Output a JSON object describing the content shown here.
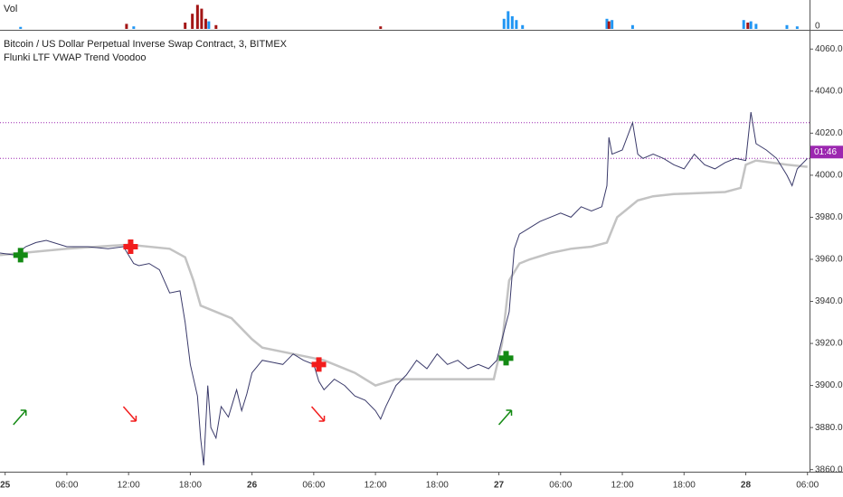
{
  "chart_data": {
    "type": "line",
    "title": "Bitcoin / US Dollar Perpetual Inverse Swap Contract, 3, BITMEX",
    "subtitle": "Flunki LTF VWAP Trend Voodoo",
    "countdown": "01:46",
    "xlim": [
      -0.5,
      78.2
    ],
    "xticks": [
      {
        "value": 0,
        "label": "25"
      },
      {
        "value": 6,
        "label": "06:00"
      },
      {
        "value": 12,
        "label": "12:00"
      },
      {
        "value": 18,
        "label": "18:00"
      },
      {
        "value": 24,
        "label": "26"
      },
      {
        "value": 30,
        "label": "06:00"
      },
      {
        "value": 36,
        "label": "12:00"
      },
      {
        "value": 42,
        "label": "18:00"
      },
      {
        "value": 48,
        "label": "27"
      },
      {
        "value": 54,
        "label": "06:00"
      },
      {
        "value": 60,
        "label": "12:00"
      },
      {
        "value": 66,
        "label": "18:00"
      },
      {
        "value": 72,
        "label": "28"
      },
      {
        "value": 78,
        "label": "06:00"
      }
    ],
    "ylim": [
      3859,
      4067
    ],
    "yticks": [
      {
        "value": 3860,
        "label": "3860.0"
      },
      {
        "value": 3880,
        "label": "3880.0"
      },
      {
        "value": 3900,
        "label": "3900.0"
      },
      {
        "value": 3920,
        "label": "3920.0"
      },
      {
        "value": 3940,
        "label": "3940.0"
      },
      {
        "value": 3960,
        "label": "3960.0"
      },
      {
        "value": 3980,
        "label": "3980.0"
      },
      {
        "value": 4000,
        "label": "4000.0"
      },
      {
        "value": 4020,
        "label": "4020.0"
      },
      {
        "value": 4040,
        "label": "4040.0"
      },
      {
        "value": 4060,
        "label": "4060.0"
      }
    ],
    "levels": {
      "values": [
        4025,
        4008
      ],
      "color": "#9c27b0"
    },
    "series": [
      {
        "color": "#3a3a6a",
        "x": [
          -0.5,
          1,
          2,
          3,
          4,
          6,
          8,
          10,
          11.5,
          12.5,
          13,
          14,
          15,
          16,
          17,
          17.5,
          18,
          18.7,
          19,
          19.3,
          19.7,
          20,
          20.5,
          21,
          21.7,
          22.5,
          23,
          23.5,
          24,
          25,
          26,
          27,
          28,
          29,
          30,
          30.5,
          31,
          32,
          33,
          34,
          35,
          36,
          36.5,
          37,
          38,
          39,
          40,
          41,
          42,
          43,
          44,
          45,
          46,
          47,
          47.8,
          48.2,
          49,
          49.5,
          50,
          51,
          52,
          53,
          54,
          55,
          56,
          57,
          58,
          58.5,
          58.7,
          59,
          60,
          61,
          61.5,
          62,
          63,
          64,
          65,
          66,
          67,
          68,
          69,
          70,
          71,
          72,
          72.5,
          73,
          74,
          75,
          76,
          76.5,
          77,
          78
        ],
        "values": [
          3963,
          3962,
          3966,
          3968,
          3969,
          3966,
          3966,
          3965,
          3966,
          3958,
          3957,
          3958,
          3955,
          3944,
          3945,
          3930,
          3910,
          3895,
          3875,
          3862,
          3900,
          3880,
          3875,
          3890,
          3885,
          3898,
          3888,
          3896,
          3906,
          3912,
          3911,
          3910,
          3915,
          3912,
          3910,
          3902,
          3898,
          3903,
          3900,
          3895,
          3893,
          3888,
          3884,
          3890,
          3900,
          3905,
          3912,
          3908,
          3915,
          3910,
          3912,
          3908,
          3910,
          3908,
          3912,
          3920,
          3935,
          3965,
          3972,
          3975,
          3978,
          3980,
          3982,
          3980,
          3985,
          3983,
          3985,
          3995,
          4018,
          4010,
          4012,
          4025,
          4010,
          4008,
          4010,
          4008,
          4005,
          4003,
          4010,
          4005,
          4003,
          4006,
          4008,
          4007,
          4030,
          4015,
          4012,
          4008,
          4000,
          3995,
          4003,
          4008
        ]
      },
      {
        "color": "#c3c3c3",
        "x": [
          -0.5,
          6,
          12,
          16,
          17.5,
          18.3,
          19,
          22,
          24,
          25,
          28,
          31,
          34,
          36,
          38,
          40,
          45,
          47.5,
          48.3,
          49,
          50,
          51,
          53,
          55,
          57,
          58.5,
          59.5,
          60.5,
          61.5,
          63,
          65,
          70,
          71.5,
          72,
          73,
          76,
          78
        ],
        "values": [
          3962,
          3965,
          3967,
          3965,
          3961,
          3950,
          3938,
          3932,
          3922,
          3918,
          3915,
          3912,
          3906,
          3900,
          3903,
          3903,
          3903,
          3903,
          3920,
          3950,
          3958,
          3960,
          3963,
          3965,
          3966,
          3968,
          3980,
          3984,
          3988,
          3990,
          3991,
          3992,
          3994,
          4005,
          4007,
          4005,
          4004
        ]
      }
    ],
    "long_signals": {
      "color": "#138a13",
      "x": [
        1.5,
        48.7
      ],
      "values": [
        3962,
        3913
      ]
    },
    "short_signals": {
      "color": "#f21d1d",
      "x": [
        12.2,
        30.5
      ],
      "values": [
        3966,
        3910
      ]
    },
    "volume": {
      "label": "Vol",
      "ylim": [
        0,
        100
      ],
      "yticks": [
        0
      ],
      "up": {
        "color": "#2196f3",
        "x": [
          1.5,
          12.5,
          19.8,
          48.5,
          48.9,
          49.3,
          49.7,
          50.3,
          58.5,
          59,
          61,
          71.8,
          72.5,
          73,
          76,
          77
        ],
        "values": [
          8,
          10,
          30,
          40,
          70,
          50,
          35,
          15,
          40,
          35,
          15,
          35,
          30,
          20,
          15,
          10
        ]
      },
      "down": {
        "color": "#a31515",
        "x": [
          11.8,
          17.5,
          18.2,
          18.7,
          19.1,
          19.5,
          20.5,
          36.5,
          58.7,
          72.2
        ],
        "values": [
          20,
          25,
          60,
          95,
          80,
          40,
          15,
          10,
          30,
          25
        ]
      }
    }
  }
}
